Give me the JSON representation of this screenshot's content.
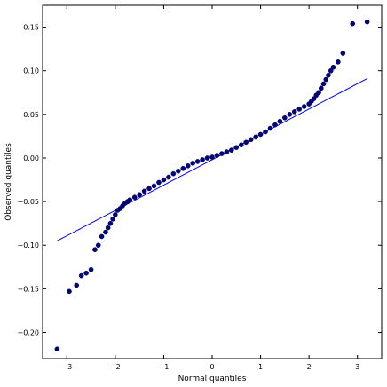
{
  "chart_data": {
    "type": "scatter",
    "xlabel": "Normal quantiles",
    "ylabel": "Observed quantiles",
    "xlim": [
      -3.5,
      3.5
    ],
    "ylim": [
      -0.23,
      0.175
    ],
    "xticks": [
      -3,
      -2,
      -1,
      0,
      1,
      2,
      3
    ],
    "xtick_labels": [
      "−3",
      "−2",
      "−1",
      "0",
      "1",
      "2",
      "3"
    ],
    "yticks": [
      -0.2,
      -0.15,
      -0.1,
      -0.05,
      0.0,
      0.05,
      0.1,
      0.15
    ],
    "ytick_labels": [
      "−0.20",
      "−0.15",
      "−0.10",
      "−0.05",
      "0.00",
      "0.05",
      "0.10",
      "0.15"
    ],
    "grid": false,
    "legend": "none",
    "point_color": "#00008b",
    "line_color": "#0000ff",
    "reference_line": {
      "x": [
        -3.2,
        3.2
      ],
      "y": [
        -0.095,
        0.091
      ]
    },
    "series": [
      {
        "x": [
          -3.2,
          -2.95,
          -2.8,
          -2.7,
          -2.6,
          -2.5,
          -2.42,
          -2.35,
          -2.28,
          -2.2,
          -2.15,
          -2.1,
          -2.05,
          -2.0,
          -1.95,
          -1.9,
          -1.85,
          -1.8,
          -1.75,
          -1.7,
          -1.6,
          -1.5,
          -1.4,
          -1.3,
          -1.2,
          -1.1,
          -1.0,
          -0.9,
          -0.8,
          -0.7,
          -0.6,
          -0.5,
          -0.4,
          -0.3,
          -0.2,
          -0.1,
          0.0,
          0.1,
          0.2,
          0.3,
          0.4,
          0.5,
          0.6,
          0.7,
          0.8,
          0.9,
          1.0,
          1.1,
          1.2,
          1.3,
          1.4,
          1.5,
          1.6,
          1.7,
          1.8,
          1.9,
          2.0,
          2.05,
          2.1,
          2.15,
          2.2,
          2.25,
          2.3,
          2.35,
          2.4,
          2.45,
          2.5,
          2.6,
          2.7,
          2.9,
          3.2
        ],
        "y": [
          -0.219,
          -0.153,
          -0.146,
          -0.135,
          -0.132,
          -0.128,
          -0.105,
          -0.1,
          -0.09,
          -0.085,
          -0.08,
          -0.075,
          -0.07,
          -0.065,
          -0.06,
          -0.058,
          -0.055,
          -0.052,
          -0.05,
          -0.048,
          -0.045,
          -0.042,
          -0.038,
          -0.035,
          -0.032,
          -0.028,
          -0.025,
          -0.022,
          -0.018,
          -0.015,
          -0.012,
          -0.009,
          -0.006,
          -0.004,
          -0.002,
          0.0,
          0.001,
          0.003,
          0.005,
          0.007,
          0.009,
          0.012,
          0.015,
          0.018,
          0.021,
          0.024,
          0.027,
          0.03,
          0.034,
          0.038,
          0.042,
          0.046,
          0.05,
          0.053,
          0.056,
          0.059,
          0.062,
          0.065,
          0.068,
          0.072,
          0.075,
          0.08,
          0.085,
          0.09,
          0.095,
          0.1,
          0.104,
          0.11,
          0.12,
          0.154,
          0.156
        ]
      }
    ]
  }
}
